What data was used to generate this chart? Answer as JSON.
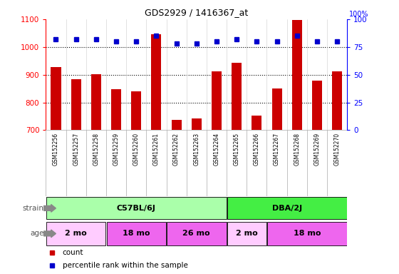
{
  "title": "GDS2929 / 1416367_at",
  "samples": [
    "GSM152256",
    "GSM152257",
    "GSM152258",
    "GSM152259",
    "GSM152260",
    "GSM152261",
    "GSM152262",
    "GSM152263",
    "GSM152264",
    "GSM152265",
    "GSM152266",
    "GSM152267",
    "GSM152268",
    "GSM152269",
    "GSM152270"
  ],
  "counts": [
    928,
    884,
    901,
    848,
    840,
    1045,
    738,
    743,
    912,
    944,
    752,
    850,
    1098,
    878,
    912
  ],
  "percentile_ranks": [
    82,
    82,
    82,
    80,
    80,
    85,
    78,
    78,
    80,
    82,
    80,
    80,
    85,
    80,
    80
  ],
  "ylim_left": [
    700,
    1100
  ],
  "ylim_right": [
    0,
    100
  ],
  "yticks_left": [
    700,
    800,
    900,
    1000,
    1100
  ],
  "yticks_right": [
    0,
    25,
    50,
    75,
    100
  ],
  "bar_color": "#cc0000",
  "dot_color": "#0000cc",
  "strain_groups": [
    {
      "label": "C57BL/6J",
      "start": 0,
      "end": 9,
      "color": "#aaffaa"
    },
    {
      "label": "DBA/2J",
      "start": 9,
      "end": 15,
      "color": "#44ee44"
    }
  ],
  "age_groups": [
    {
      "label": "2 mo",
      "start": 0,
      "end": 3,
      "color": "#ffccff"
    },
    {
      "label": "18 mo",
      "start": 3,
      "end": 6,
      "color": "#ee66ee"
    },
    {
      "label": "26 mo",
      "start": 6,
      "end": 9,
      "color": "#ee66ee"
    },
    {
      "label": "2 mo",
      "start": 9,
      "end": 11,
      "color": "#ffccff"
    },
    {
      "label": "18 mo",
      "start": 11,
      "end": 15,
      "color": "#ee66ee"
    }
  ],
  "dotted_line_values": [
    800,
    900,
    1000
  ],
  "bg_color": "#ffffff",
  "xlabels_bg": "#d0d0d0"
}
